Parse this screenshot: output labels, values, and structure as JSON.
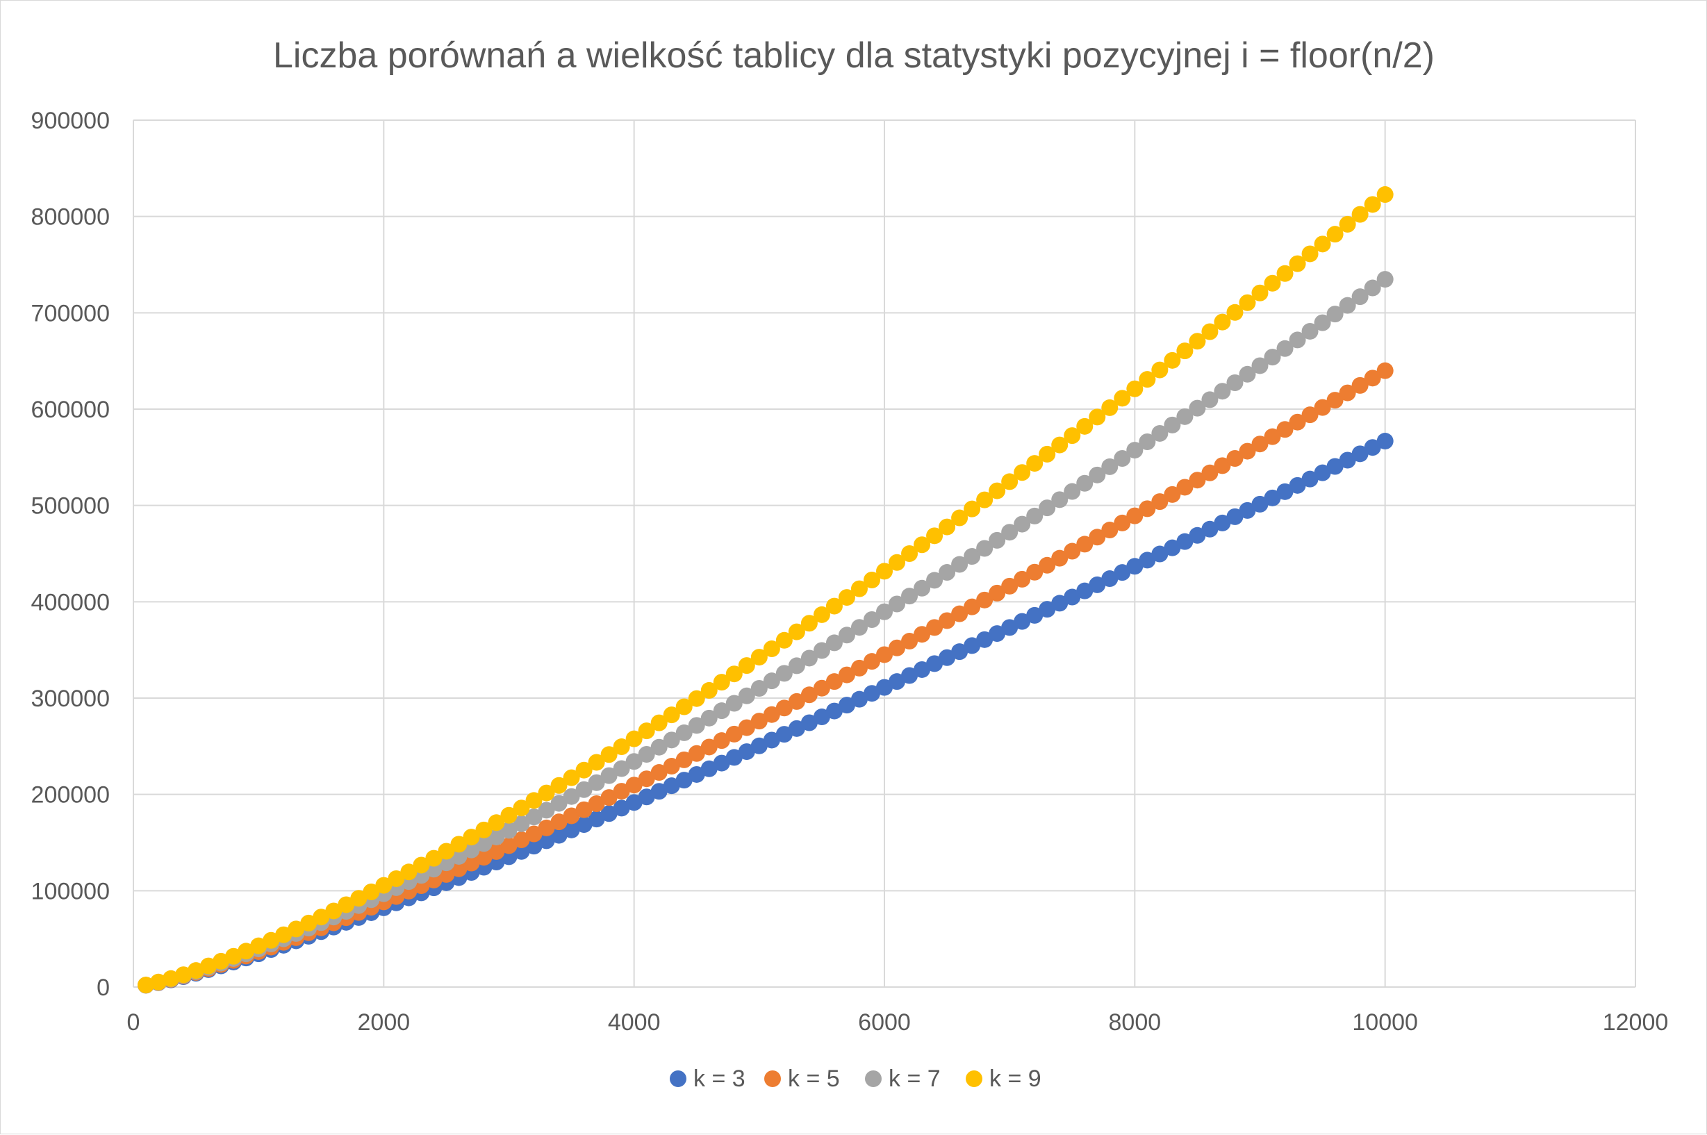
{
  "chart_data": {
    "type": "scatter",
    "title": "Liczba porównań a wielkość tablicy dla statystyki pozycyjnej i = floor(n/2)",
    "xlabel": "",
    "ylabel": "",
    "xlim": [
      0,
      12000
    ],
    "ylim": [
      0,
      900000
    ],
    "x_ticks": [
      "0",
      "2000",
      "4000",
      "6000",
      "8000",
      "10000",
      "12000"
    ],
    "y_ticks": [
      "0",
      "100000",
      "200000",
      "300000",
      "400000",
      "500000",
      "600000",
      "700000",
      "800000",
      "900000"
    ],
    "grid": true,
    "legend_position": "bottom",
    "x": [
      100,
      200,
      300,
      400,
      500,
      600,
      700,
      800,
      900,
      1000,
      1100,
      1200,
      1300,
      1400,
      1500,
      1600,
      1700,
      1800,
      1900,
      2000,
      2100,
      2200,
      2300,
      2400,
      2500,
      2600,
      2700,
      2800,
      2900,
      3000,
      3100,
      3200,
      3300,
      3400,
      3500,
      3600,
      3700,
      3800,
      3900,
      4000,
      4100,
      4200,
      4300,
      4400,
      4500,
      4600,
      4700,
      4800,
      4900,
      5000,
      5100,
      5200,
      5300,
      5400,
      5500,
      5600,
      5700,
      5800,
      5900,
      6000,
      6100,
      6200,
      6300,
      6400,
      6500,
      6600,
      6700,
      6800,
      6900,
      7000,
      7100,
      7200,
      7300,
      7400,
      7500,
      7600,
      7700,
      7800,
      7900,
      8000,
      8100,
      8200,
      8300,
      8400,
      8500,
      8600,
      8700,
      8800,
      8900,
      9000,
      9100,
      9200,
      9300,
      9400,
      9500,
      9600,
      9700,
      9800,
      9900,
      10000
    ],
    "series": [
      {
        "name": "k = 3",
        "color": "#4472C4",
        "values": [
          1870,
          4470,
          7480,
          10800,
          14350,
          18100,
          22000,
          26000,
          30200,
          34500,
          38900,
          43400,
          48000,
          52700,
          57500,
          62300,
          67200,
          72200,
          77200,
          82300,
          87400,
          92600,
          97800,
          103000,
          108300,
          113600,
          119000,
          124400,
          129800,
          135300,
          140800,
          146300,
          151900,
          157500,
          163100,
          168700,
          174400,
          180100,
          185800,
          191600,
          197400,
          203200,
          209000,
          214800,
          220700,
          226600,
          232500,
          238400,
          244400,
          250400,
          256400,
          262400,
          268400,
          274400,
          280500,
          286600,
          292700,
          298800,
          304900,
          311100,
          317200,
          323400,
          329600,
          335800,
          342000,
          348200,
          354500,
          360700,
          367000,
          373300,
          379600,
          385900,
          392200,
          398500,
          404900,
          411300,
          417600,
          424000,
          430400,
          436800,
          443200,
          449600,
          456000,
          462500,
          468900,
          475400,
          481800,
          488300,
          494800,
          501300,
          507800,
          514300,
          520800,
          527400,
          533900,
          540500,
          547000,
          553600,
          560200,
          566800
        ]
      },
      {
        "name": "k = 5",
        "color": "#ED7D31",
        "values": [
          1950,
          4700,
          7900,
          11400,
          15200,
          19200,
          23400,
          27700,
          32200,
          36800,
          41500,
          46400,
          51300,
          56400,
          61500,
          66700,
          72000,
          77400,
          82800,
          88400,
          94000,
          99600,
          105300,
          111100,
          116900,
          122800,
          128700,
          134700,
          140700,
          146800,
          152900,
          159000,
          165200,
          171500,
          177800,
          184100,
          190400,
          196800,
          203300,
          209700,
          216200,
          222800,
          229300,
          235900,
          242500,
          249200,
          255900,
          262600,
          269300,
          276100,
          282900,
          289700,
          296500,
          303400,
          310300,
          317200,
          324100,
          331100,
          338100,
          345100,
          352100,
          359100,
          366200,
          373300,
          380400,
          387500,
          394700,
          401800,
          409000,
          416200,
          423400,
          430700,
          437900,
          445200,
          452500,
          459800,
          467100,
          474500,
          481800,
          489200,
          496600,
          504000,
          511400,
          518900,
          526300,
          533800,
          541300,
          548800,
          556300,
          563800,
          571400,
          578900,
          586500,
          594100,
          601700,
          609300,
          616900,
          624600,
          632200,
          639900
        ]
      },
      {
        "name": "k = 7",
        "color": "#A5A5A5",
        "values": [
          2000,
          4900,
          8300,
          12000,
          16100,
          20400,
          24900,
          29600,
          34500,
          39600,
          44800,
          50100,
          55600,
          61200,
          66900,
          72700,
          78600,
          84600,
          90700,
          96900,
          103200,
          109500,
          115900,
          122400,
          129000,
          135600,
          142300,
          149000,
          155800,
          162700,
          169600,
          176600,
          183600,
          190700,
          197800,
          205000,
          212200,
          219500,
          226800,
          234200,
          241600,
          249000,
          256500,
          264000,
          271600,
          279200,
          286900,
          294600,
          302300,
          310100,
          317900,
          325700,
          333600,
          341500,
          349400,
          357400,
          365400,
          373400,
          381500,
          389600,
          397700,
          405900,
          414100,
          422300,
          430500,
          438800,
          447100,
          455400,
          463800,
          472200,
          480600,
          489000,
          497500,
          506000,
          514500,
          523000,
          531600,
          540200,
          548800,
          557400,
          566100,
          574800,
          583500,
          592200,
          601000,
          609800,
          618600,
          627400,
          636200,
          645100,
          654000,
          662900,
          671800,
          680800,
          689700,
          698700,
          707700,
          716700,
          725800,
          734800
        ]
      },
      {
        "name": "k = 9",
        "color": "#FFC000",
        "values": [
          2100,
          5200,
          8800,
          12800,
          17200,
          21900,
          26800,
          31900,
          37300,
          42800,
          48500,
          54300,
          60300,
          66400,
          72700,
          79000,
          85500,
          92100,
          98800,
          105600,
          112500,
          119500,
          126600,
          133700,
          141000,
          148300,
          155700,
          163100,
          170700,
          178300,
          185900,
          193700,
          201500,
          209300,
          217300,
          225200,
          233300,
          241400,
          249500,
          257700,
          266000,
          274300,
          282600,
          291000,
          299500,
          308000,
          316500,
          325100,
          333800,
          342500,
          351200,
          360000,
          368800,
          377700,
          386600,
          395500,
          404500,
          413500,
          422600,
          431700,
          440800,
          450000,
          459200,
          468500,
          477700,
          487100,
          496400,
          505800,
          515200,
          524700,
          534200,
          543700,
          553200,
          562800,
          572500,
          582100,
          591800,
          601500,
          611300,
          621100,
          630900,
          640700,
          650600,
          660500,
          670500,
          680400,
          690400,
          700400,
          710500,
          720600,
          730700,
          740800,
          751000,
          761200,
          771400,
          781600,
          791900,
          802200,
          812500,
          822800
        ]
      }
    ]
  }
}
